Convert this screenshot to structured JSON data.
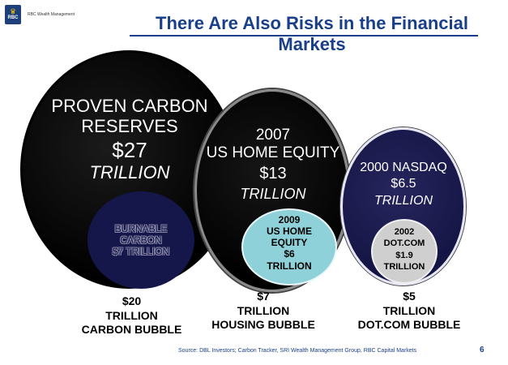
{
  "brand": {
    "name": "RBC Wealth Management",
    "color": "#1d3f7a",
    "logo_letters": "RBC"
  },
  "slide": {
    "title": "There Are Also Risks in the Financial Markets",
    "title_color": "#1a3f8a",
    "source": "Source: DBL Investors; Carbon Tracker, SRI Wealth Management Group, RBC Capital Markets",
    "page_number": "6"
  },
  "circles": {
    "carbon": {
      "line1": "PROVEN CARBON",
      "line2": "RESERVES",
      "amount": "$27",
      "unit": "TRILLION",
      "inner": {
        "line1": "BURNABLE",
        "line2": "CARBON",
        "line3": "$7 TRILLION"
      },
      "caption": {
        "amount": "$20",
        "unit": "TRILLION",
        "label": "CARBON BUBBLE"
      }
    },
    "home": {
      "line1": "2007",
      "line2": "US HOME EQUITY",
      "amount": "$13",
      "unit": "TRILLION",
      "inner": {
        "line1": "2009",
        "line2": "US HOME",
        "line3": "EQUITY",
        "line4": "$6",
        "line5": "TRILLION"
      },
      "caption": {
        "amount": "$7",
        "unit": "TRILLION",
        "label": "HOUSING BUBBLE"
      }
    },
    "nasdaq": {
      "line1": "2000 NASDAQ",
      "amount": "$6.5",
      "unit": "TRILLION",
      "inner": {
        "line1": "2002",
        "line2": "DOT.COM",
        "line3": "$1.9",
        "line4": "TRILLION"
      },
      "caption": {
        "amount": "$5",
        "unit": "TRILLION",
        "label": "DOT.COM BUBBLE"
      }
    }
  }
}
